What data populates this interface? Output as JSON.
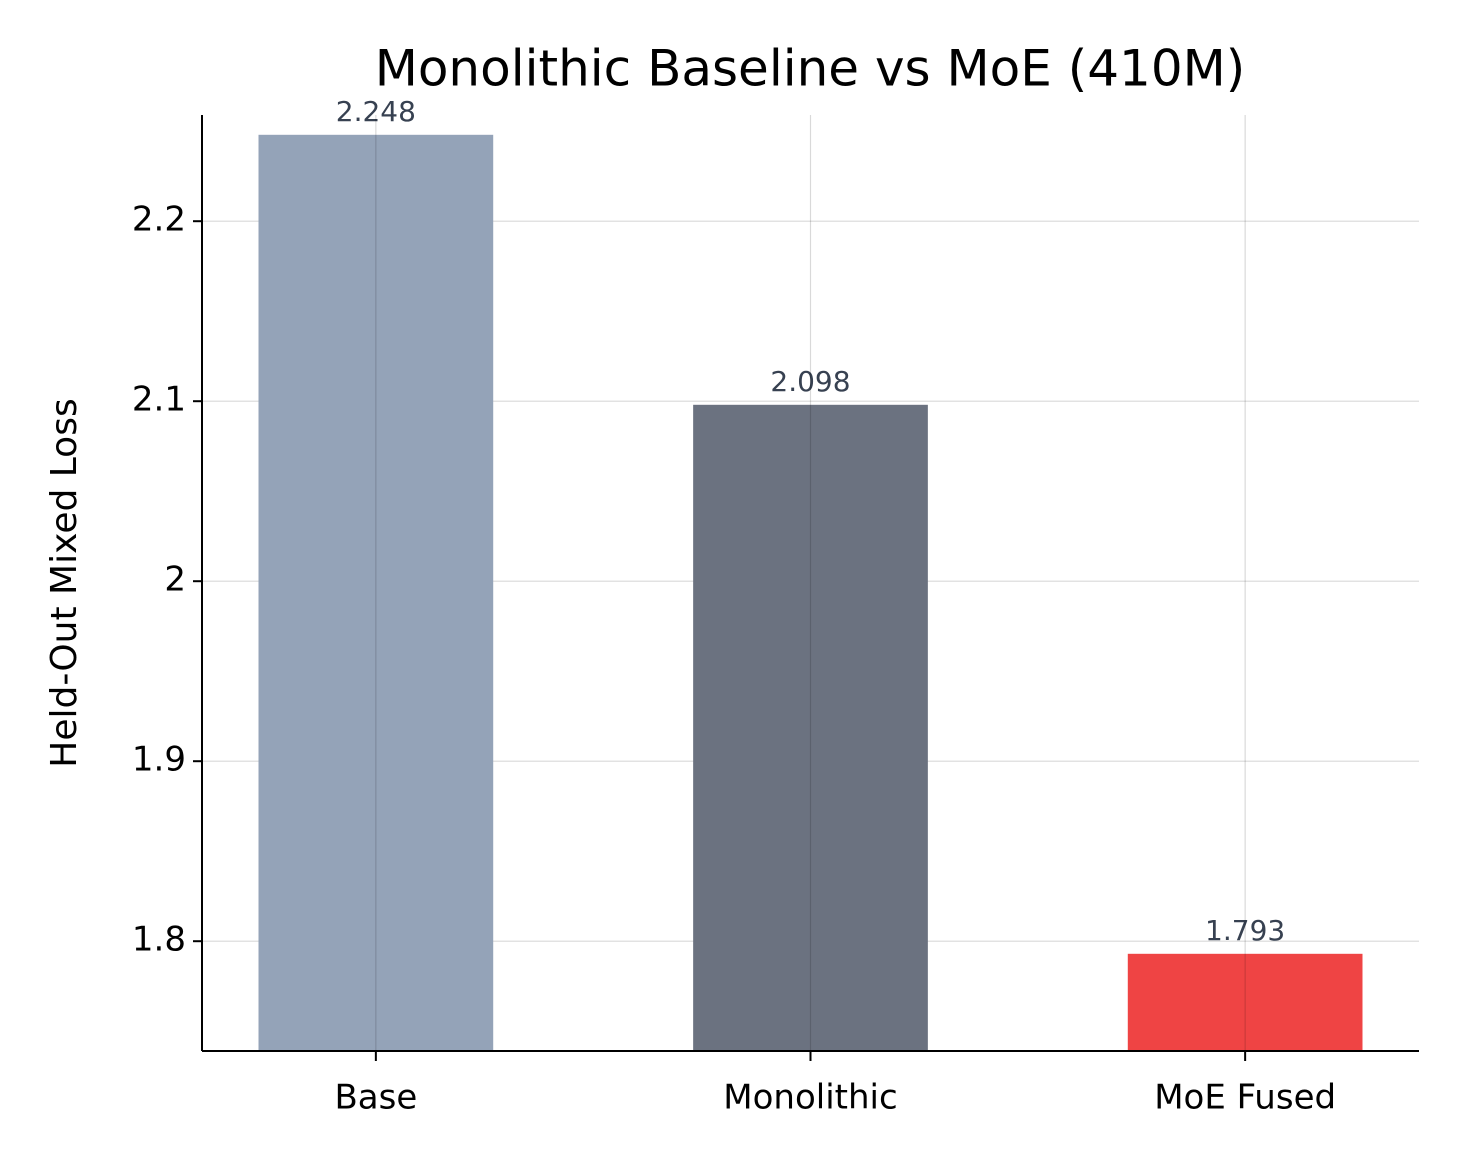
{
  "chart_data": {
    "type": "bar",
    "title": "Monolithic Baseline vs MoE (410M)",
    "y_label": "Held-Out Mixed Loss",
    "categories": [
      "Base",
      "Monolithic",
      "MoE Fused"
    ],
    "values": [
      2.248,
      2.098,
      1.793
    ],
    "colors": [
      "#94a3b8",
      "#6b7280",
      "#ef4444"
    ],
    "ylim": [
      1.739,
      2.259
    ],
    "yticks": [
      1.8,
      1.9,
      2.0,
      2.1,
      2.2
    ],
    "grid": true
  }
}
